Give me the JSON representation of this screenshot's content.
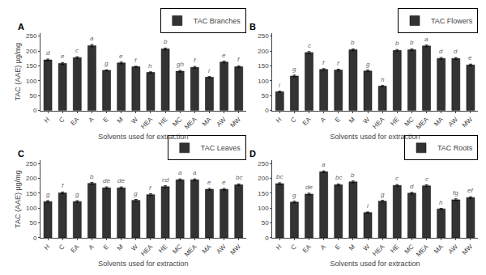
{
  "chart_data": [
    {
      "type": "bar",
      "title": "A",
      "categories": [
        "H",
        "C",
        "EA",
        "A",
        "E",
        "M",
        "W",
        "HEA",
        "HE",
        "MC",
        "MEA",
        "MA",
        "AW",
        "MW"
      ],
      "series": [
        {
          "name": "TAC Branches",
          "color": "#333333",
          "values": [
            170,
            158,
            178,
            218,
            135,
            160,
            147,
            128,
            207,
            132,
            145,
            112,
            163,
            147
          ],
          "errors": [
            3,
            3,
            3,
            4,
            2,
            3,
            2,
            2,
            3,
            3,
            3,
            2,
            3,
            3
          ]
        }
      ],
      "annotations": [
        "d",
        "e",
        "c",
        "a",
        "g",
        "e",
        "f",
        "h",
        "b",
        "gh",
        "f",
        "i",
        "e",
        "f"
      ],
      "xlabel": "Solvents used for extraction",
      "ylabel": "TAC (AAE) µg/mg",
      "ylim": [
        0,
        260
      ],
      "yticks": [
        0,
        50,
        100,
        150,
        200,
        250
      ],
      "grid": false,
      "legend": "upper right"
    },
    {
      "type": "bar",
      "title": "B",
      "categories": [
        "H",
        "C",
        "EA",
        "A",
        "E",
        "M",
        "W",
        "HEA",
        "HE",
        "MC",
        "MEA",
        "MA",
        "AW",
        "MW"
      ],
      "series": [
        {
          "name": "TAC Flowers",
          "color": "#333333",
          "values": [
            63,
            116,
            195,
            138,
            136,
            204,
            133,
            82,
            202,
            204,
            217,
            175,
            175,
            153
          ],
          "errors": [
            2,
            3,
            3,
            3,
            3,
            3,
            3,
            2,
            3,
            3,
            3,
            3,
            3,
            3
          ]
        }
      ],
      "annotations": [
        "i",
        "g",
        "c",
        "f",
        "f",
        "b",
        "g",
        "h",
        "b",
        "b",
        "a",
        "d",
        "d",
        "e"
      ],
      "xlabel": "Solvents used for extraction",
      "ylim": [
        0,
        260
      ],
      "yticks": [
        0,
        50,
        100,
        150,
        200,
        250
      ],
      "grid": false,
      "legend": "upper right"
    },
    {
      "type": "bar",
      "title": "C",
      "categories": [
        "H",
        "C",
        "EA",
        "A",
        "E",
        "M",
        "W",
        "HEA",
        "HE",
        "MC",
        "MEA",
        "MA",
        "AW",
        "MW"
      ],
      "series": [
        {
          "name": "TAC Leaves",
          "color": "#333333",
          "values": [
            122,
            151,
            122,
            183,
            168,
            168,
            126,
            145,
            172,
            195,
            195,
            163,
            163,
            178
          ],
          "errors": [
            3,
            3,
            3,
            3,
            3,
            3,
            3,
            3,
            3,
            3,
            3,
            3,
            3,
            3
          ]
        }
      ],
      "annotations": [
        "g",
        "f",
        "g",
        "b",
        "de",
        "de",
        "g",
        "f",
        "cd",
        "a",
        "a",
        "e",
        "e",
        "bc"
      ],
      "xlabel": "Solvents used for extraction",
      "ylabel": "TAC (AAE) µg/mg",
      "ylim": [
        0,
        260
      ],
      "yticks": [
        0,
        50,
        100,
        150,
        200,
        250
      ],
      "grid": false,
      "legend": "upper right"
    },
    {
      "type": "bar",
      "title": "D",
      "categories": [
        "H",
        "C",
        "EA",
        "A",
        "E",
        "M",
        "W",
        "HEA",
        "HE",
        "MC",
        "MEA",
        "MA",
        "AW",
        "MW"
      ],
      "series": [
        {
          "name": "TAC Roots",
          "color": "#333333",
          "values": [
            182,
            120,
            147,
            222,
            178,
            188,
            85,
            123,
            176,
            150,
            175,
            97,
            128,
            135
          ],
          "errors": [
            3,
            3,
            3,
            3,
            3,
            3,
            2,
            3,
            3,
            3,
            3,
            2,
            3,
            3
          ]
        }
      ],
      "annotations": [
        "bc",
        "g",
        "de",
        "a",
        "bc",
        "b",
        "i",
        "g",
        "c",
        "d",
        "c",
        "h",
        "fg",
        "ef"
      ],
      "xlabel": "Solvents used for extraction",
      "ylim": [
        0,
        260
      ],
      "yticks": [
        0,
        50,
        100,
        150,
        200,
        250
      ],
      "grid": false,
      "legend": "upper right"
    }
  ]
}
